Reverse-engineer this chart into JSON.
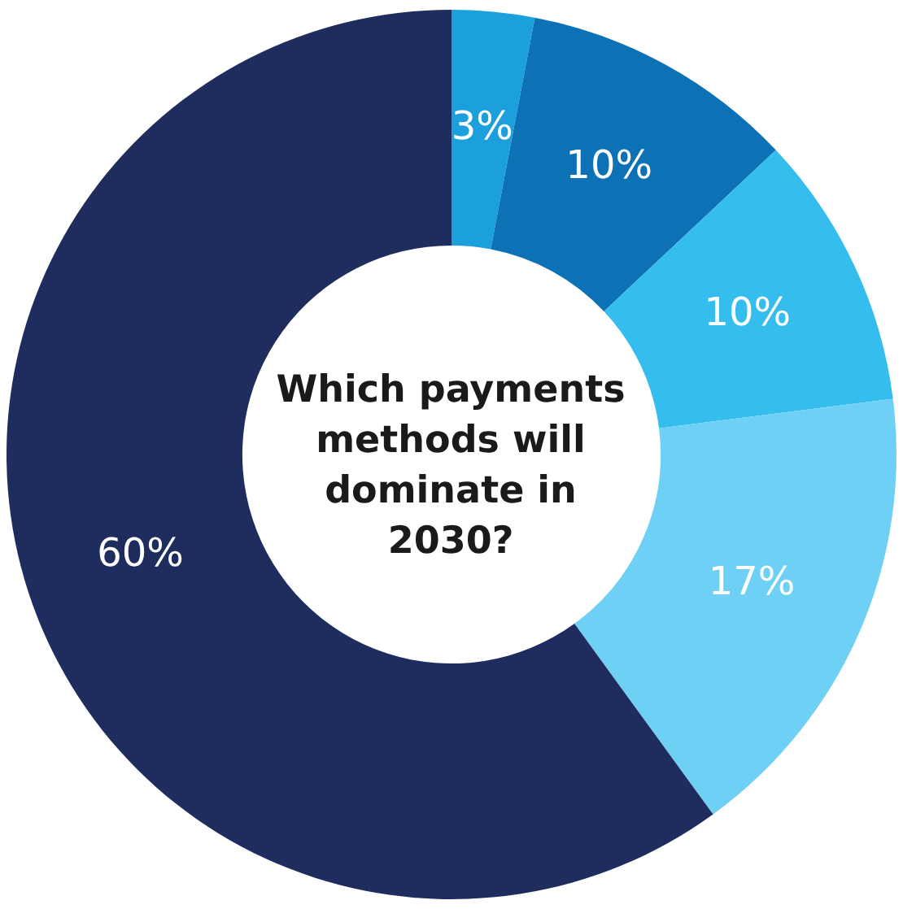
{
  "chart_data": {
    "type": "donut",
    "title": "Which payments methods will dominate in 2030?",
    "categories": [
      null,
      null,
      null,
      null,
      null
    ],
    "values": [
      3,
      10,
      10,
      17,
      60
    ],
    "colors": [
      "#1ba0dc",
      "#0d72b5",
      "#35bdee",
      "#6fd0f5",
      "#1f2d5e"
    ],
    "value_labels": [
      "3%",
      "10%",
      "10%",
      "17%",
      "60%"
    ]
  }
}
